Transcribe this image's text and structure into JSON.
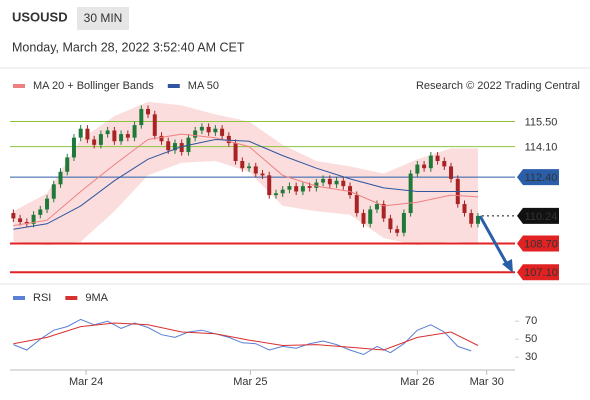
{
  "header": {
    "symbol": "USOUSD",
    "interval": "30 MIN",
    "timestamp": "Monday, March 28, 2022 3:52:40 AM CET",
    "credit": "Research © 2022 Trading Central"
  },
  "chart_data": [
    {
      "type": "candlestick",
      "xlim": [
        -0.5,
        74.5
      ],
      "ylim": [
        106.5,
        116.7
      ],
      "xticks": [
        {
          "value": 10.8,
          "label": "Mar 24"
        },
        {
          "value": 35.2,
          "label": "Mar 25"
        },
        {
          "value": 60,
          "label": "Mar 26"
        },
        {
          "value": 70.3,
          "label": "Mar 30"
        }
      ],
      "up_color": "#1f7a3a",
      "down_color": "#a82424",
      "x": [
        0,
        1,
        2,
        3,
        4,
        5,
        6,
        7,
        8,
        9,
        10,
        11,
        12,
        13,
        14,
        15,
        16,
        17,
        18,
        19,
        20,
        21,
        22,
        23,
        24,
        25,
        26,
        27,
        28,
        29,
        30,
        31,
        32,
        33,
        34,
        35,
        36,
        37,
        38,
        39,
        40,
        41,
        42,
        43,
        44,
        45,
        46,
        47,
        48,
        49,
        50,
        51,
        52,
        53,
        54,
        55,
        56,
        57,
        58,
        59,
        60,
        61,
        62,
        63,
        64,
        65,
        66,
        67,
        68,
        69
      ],
      "ohlc": [
        [
          110.4,
          110.6,
          109.9,
          110.1
        ],
        [
          110.1,
          110.3,
          109.7,
          109.9
        ],
        [
          109.9,
          110.1,
          109.6,
          109.8
        ],
        [
          109.8,
          110.5,
          109.6,
          110.3
        ],
        [
          110.3,
          110.8,
          110.1,
          110.6
        ],
        [
          110.6,
          111.4,
          110.4,
          111.2
        ],
        [
          111.2,
          112.2,
          111.0,
          112.0
        ],
        [
          112.0,
          112.9,
          111.8,
          112.7
        ],
        [
          112.7,
          113.7,
          112.5,
          113.5
        ],
        [
          113.5,
          114.8,
          113.3,
          114.6
        ],
        [
          114.6,
          115.3,
          114.4,
          115.1
        ],
        [
          115.1,
          115.3,
          114.3,
          114.5
        ],
        [
          114.5,
          114.7,
          114.0,
          114.2
        ],
        [
          114.2,
          115.0,
          114.0,
          114.8
        ],
        [
          114.8,
          115.2,
          114.6,
          115.0
        ],
        [
          115.0,
          115.2,
          114.2,
          114.4
        ],
        [
          114.4,
          115.0,
          114.2,
          114.8
        ],
        [
          114.8,
          115.0,
          114.4,
          114.6
        ],
        [
          114.6,
          115.5,
          114.4,
          115.3
        ],
        [
          115.3,
          116.4,
          115.1,
          116.2
        ],
        [
          116.2,
          116.4,
          115.7,
          115.9
        ],
        [
          115.9,
          116.1,
          114.5,
          114.7
        ],
        [
          114.7,
          114.9,
          114.2,
          114.4
        ],
        [
          114.4,
          114.6,
          113.7,
          113.9
        ],
        [
          113.9,
          114.5,
          113.7,
          114.3
        ],
        [
          114.3,
          114.5,
          113.6,
          113.8
        ],
        [
          113.8,
          114.8,
          113.6,
          114.6
        ],
        [
          114.6,
          115.2,
          114.4,
          115.0
        ],
        [
          115.0,
          115.4,
          114.8,
          115.2
        ],
        [
          115.2,
          115.4,
          114.7,
          114.9
        ],
        [
          114.9,
          115.3,
          114.7,
          115.1
        ],
        [
          115.1,
          115.3,
          114.5,
          114.7
        ],
        [
          114.7,
          114.9,
          114.1,
          114.3
        ],
        [
          114.3,
          114.5,
          113.1,
          113.3
        ],
        [
          113.3,
          113.5,
          112.7,
          112.9
        ],
        [
          112.9,
          113.2,
          112.7,
          113.0
        ],
        [
          113.0,
          113.2,
          112.4,
          112.6
        ],
        [
          112.6,
          112.8,
          112.3,
          112.5
        ],
        [
          112.5,
          112.7,
          111.2,
          111.4
        ],
        [
          111.4,
          111.7,
          111.2,
          111.5
        ],
        [
          111.5,
          111.9,
          111.3,
          111.7
        ],
        [
          111.7,
          112.1,
          111.5,
          111.9
        ],
        [
          111.9,
          112.1,
          111.4,
          111.6
        ],
        [
          111.6,
          112.1,
          111.4,
          111.9
        ],
        [
          111.9,
          112.1,
          111.6,
          111.8
        ],
        [
          111.8,
          112.3,
          111.6,
          112.1
        ],
        [
          112.1,
          112.5,
          111.9,
          112.3
        ],
        [
          112.3,
          112.5,
          111.8,
          112.0
        ],
        [
          112.0,
          112.4,
          111.8,
          112.2
        ],
        [
          112.2,
          112.4,
          111.7,
          111.9
        ],
        [
          111.9,
          112.1,
          111.2,
          111.4
        ],
        [
          111.4,
          111.6,
          110.2,
          110.4
        ],
        [
          110.4,
          110.6,
          109.6,
          109.8
        ],
        [
          109.8,
          110.8,
          109.6,
          110.6
        ],
        [
          110.6,
          111.1,
          110.4,
          110.9
        ],
        [
          110.9,
          111.1,
          109.9,
          110.1
        ],
        [
          110.1,
          110.3,
          109.3,
          109.5
        ],
        [
          109.5,
          109.7,
          109.1,
          109.3
        ],
        [
          109.3,
          110.6,
          109.1,
          110.4
        ],
        [
          110.4,
          112.8,
          110.2,
          112.6
        ],
        [
          112.6,
          113.3,
          112.4,
          113.1
        ],
        [
          113.1,
          113.3,
          112.7,
          112.9
        ],
        [
          112.9,
          113.8,
          112.7,
          113.6
        ],
        [
          113.6,
          113.8,
          113.1,
          113.3
        ],
        [
          113.3,
          113.5,
          112.8,
          113.0
        ],
        [
          113.0,
          113.2,
          112.1,
          112.3
        ],
        [
          112.3,
          112.5,
          110.7,
          110.9
        ],
        [
          110.9,
          111.1,
          110.2,
          110.4
        ],
        [
          110.4,
          110.6,
          109.6,
          109.8
        ],
        [
          109.8,
          110.4,
          109.6,
          110.24
        ]
      ],
      "band": {
        "color": "#f9d2d2",
        "x": [
          0,
          5,
          10,
          15,
          20,
          25,
          30,
          35,
          40,
          45,
          50,
          55,
          60,
          65,
          69
        ],
        "upper": [
          110.5,
          111.5,
          114.5,
          115.8,
          116.6,
          116.4,
          115.9,
          115.5,
          114.2,
          113.3,
          113.0,
          112.6,
          113.4,
          114.0,
          114.0
        ],
        "lower": [
          108.8,
          108.6,
          108.8,
          110.5,
          112.5,
          113.2,
          113.3,
          112.7,
          110.8,
          110.5,
          110.3,
          109.0,
          108.6,
          108.8,
          108.7
        ]
      },
      "series": [
        {
          "name": "MA 20 + Bollinger Bands",
          "color": "#ee8080",
          "x": [
            0,
            5,
            10,
            15,
            20,
            25,
            30,
            35,
            40,
            45,
            50,
            55,
            60,
            65,
            69
          ],
          "values": [
            109.7,
            110.0,
            111.6,
            113.1,
            114.5,
            114.8,
            114.6,
            114.1,
            112.5,
            111.9,
            111.6,
            110.8,
            111.0,
            111.4,
            111.3
          ]
        },
        {
          "name": "MA 50",
          "color": "#2f569e",
          "x": [
            0,
            5,
            10,
            15,
            20,
            25,
            30,
            35,
            40,
            45,
            50,
            55,
            60,
            65,
            69
          ],
          "values": [
            109.5,
            109.8,
            110.8,
            112.2,
            113.4,
            114.1,
            114.5,
            114.4,
            113.6,
            112.9,
            112.3,
            111.8,
            111.6,
            111.6,
            111.6
          ]
        }
      ],
      "levels": [
        {
          "value": 115.5,
          "label": "115.50",
          "color": "#8cc43c",
          "boxed": false
        },
        {
          "value": 114.1,
          "label": "114.10",
          "color": "#8cc43c",
          "boxed": false
        },
        {
          "value": 112.4,
          "label": "112.40",
          "color": "#2b5ea8",
          "boxed": true
        },
        {
          "value": 110.24,
          "label": "110.24",
          "color": "#111111",
          "boxed": true,
          "dotted": true
        },
        {
          "value": 108.7,
          "label": "108.70",
          "color": "#e02222",
          "boxed": true
        },
        {
          "value": 107.1,
          "label": "107.10",
          "color": "#e02222",
          "boxed": true
        }
      ]
    },
    {
      "type": "line",
      "xlim": [
        -0.5,
        74.5
      ],
      "ylim": [
        18,
        88
      ],
      "yticks": [
        30,
        50,
        70
      ],
      "series": [
        {
          "name": "RSI",
          "color": "#5a7fd6",
          "x": [
            0,
            2,
            4,
            6,
            8,
            10,
            12,
            14,
            16,
            18,
            20,
            22,
            24,
            26,
            28,
            30,
            32,
            34,
            36,
            38,
            40,
            42,
            44,
            46,
            48,
            50,
            52,
            54,
            56,
            58,
            60,
            62,
            64,
            66,
            68
          ],
          "values": [
            44,
            38,
            50,
            60,
            64,
            72,
            66,
            70,
            62,
            68,
            63,
            55,
            52,
            58,
            60,
            56,
            52,
            46,
            45,
            38,
            42,
            40,
            45,
            48,
            44,
            38,
            33,
            42,
            35,
            45,
            60,
            66,
            58,
            42,
            37
          ]
        },
        {
          "name": "9MA",
          "color": "#d83030",
          "x": [
            0,
            5,
            10,
            15,
            20,
            25,
            30,
            35,
            40,
            45,
            50,
            55,
            60,
            65,
            69
          ],
          "values": [
            45,
            52,
            64,
            68,
            66,
            58,
            56,
            49,
            43,
            44,
            41,
            38,
            52,
            58,
            43
          ]
        }
      ]
    }
  ]
}
